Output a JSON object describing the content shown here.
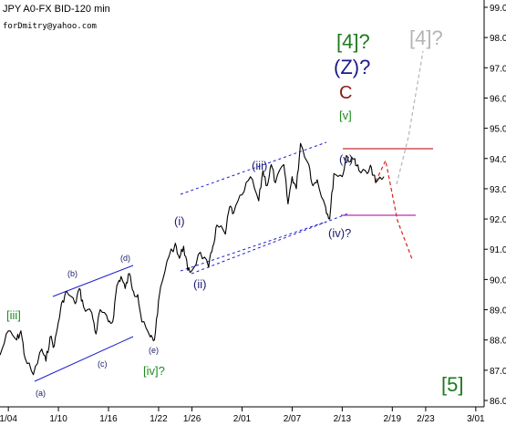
{
  "header": {
    "title": "JPY A0-FX BID-120 min",
    "author": "forDmitry@yahoo.com"
  },
  "chart_data": {
    "type": "line",
    "title": "JPY A0-FX BID-120 min",
    "xlabel": "",
    "ylabel": "",
    "x_ticks": [
      "1/04",
      "1/10",
      "1/16",
      "1/22",
      "1/26",
      "2/01",
      "2/07",
      "2/13",
      "2/19",
      "2/23",
      "3/01"
    ],
    "x_range": [
      "1/03",
      "3/01"
    ],
    "ylim": [
      85.9,
      99.2
    ],
    "y_ticks": [
      "86.00",
      "87.00",
      "88.00",
      "89.00",
      "90.00",
      "91.00",
      "92.00",
      "93.00",
      "94.00",
      "95.00",
      "96.00",
      "97.00",
      "98.00",
      "99.00"
    ],
    "grid": false,
    "series": [
      {
        "color": "#000000",
        "x": [
          "1/03",
          "1/04",
          "1/05",
          "1/05",
          "1/06",
          "1/07",
          "1/08",
          "1/08",
          "1/09",
          "1/09",
          "1/10",
          "1/10",
          "1/11",
          "1/12",
          "1/12",
          "1/13",
          "1/14",
          "1/14",
          "1/15",
          "1/16",
          "1/16",
          "1/17",
          "1/17",
          "1/18",
          "1/18",
          "1/19",
          "1/19",
          "1/20",
          "1/21",
          "1/21",
          "1/22",
          "1/23",
          "1/24",
          "1/24",
          "1/25",
          "1/25",
          "1/26",
          "1/27",
          "1/28",
          "1/28",
          "1/29",
          "1/30",
          "1/30",
          "1/31",
          "2/01",
          "2/02",
          "2/03",
          "2/03",
          "2/04",
          "2/04",
          "2/05",
          "2/06",
          "2/06",
          "2/07",
          "2/07",
          "2/08",
          "2/09",
          "2/09",
          "2/10",
          "2/11",
          "2/11",
          "2/12",
          "2/13",
          "2/13",
          "2/14",
          "2/14",
          "2/15",
          "2/16",
          "2/16",
          "2/17",
          "2/18"
        ],
        "values": [
          87.5,
          88.3,
          88.0,
          88.3,
          87.4,
          86.85,
          87.7,
          87.3,
          88.1,
          87.8,
          88.6,
          89.3,
          89.6,
          89.2,
          89.7,
          89.1,
          88.9,
          88.2,
          89.0,
          88.6,
          88.6,
          89.8,
          90.1,
          89.7,
          90.2,
          89.6,
          89.5,
          88.6,
          88.1,
          88.0,
          89.3,
          90.6,
          91.2,
          90.7,
          91.1,
          90.3,
          90.3,
          90.9,
          90.4,
          91.1,
          91.8,
          91.5,
          92.4,
          92.2,
          92.8,
          93.4,
          92.6,
          93.6,
          93.1,
          93.8,
          93.2,
          93.8,
          92.5,
          93.4,
          93.0,
          94.5,
          93.8,
          93.1,
          93.3,
          92.4,
          92.0,
          93.5,
          93.4,
          94.1,
          93.9,
          94.0,
          93.6,
          93.5,
          93.7,
          93.2,
          93.4
        ]
      }
    ],
    "annotations": [
      {
        "text": "[iii]",
        "color": "#1e8c1e"
      },
      {
        "text": "(a)",
        "color": "#1a1a6e"
      },
      {
        "text": "(b)",
        "color": "#1a1a6e"
      },
      {
        "text": "(c)",
        "color": "#1a1a6e"
      },
      {
        "text": "(d)",
        "color": "#1a1a6e"
      },
      {
        "text": "(e)",
        "color": "#1a1a6e"
      },
      {
        "text": "[iv]?",
        "color": "#1e8c1e"
      },
      {
        "text": "(i)",
        "color": "#1a1a6e"
      },
      {
        "text": "(ii)",
        "color": "#1a1a6e"
      },
      {
        "text": "(iii)",
        "color": "#1a1a6e"
      },
      {
        "text": "(iv)?",
        "color": "#1a1a6e"
      },
      {
        "text": "(v)",
        "color": "#1a1a6e"
      },
      {
        "text": "[v]",
        "color": "#1e8c1e"
      },
      {
        "text": "C",
        "color": "#8b1a1a"
      },
      {
        "text": "(Z)?",
        "color": "#1a1a8b"
      },
      {
        "text": "[4]?",
        "color": "#1e7a1e"
      },
      {
        "text": "[4]?",
        "color": "#b4b4b4"
      },
      {
        "text": "[5]",
        "color": "#1e7a1e"
      }
    ],
    "levels": [
      {
        "y": 94.3,
        "color": "#c83232"
      },
      {
        "y": 92.1,
        "color": "#b432b4"
      }
    ]
  }
}
